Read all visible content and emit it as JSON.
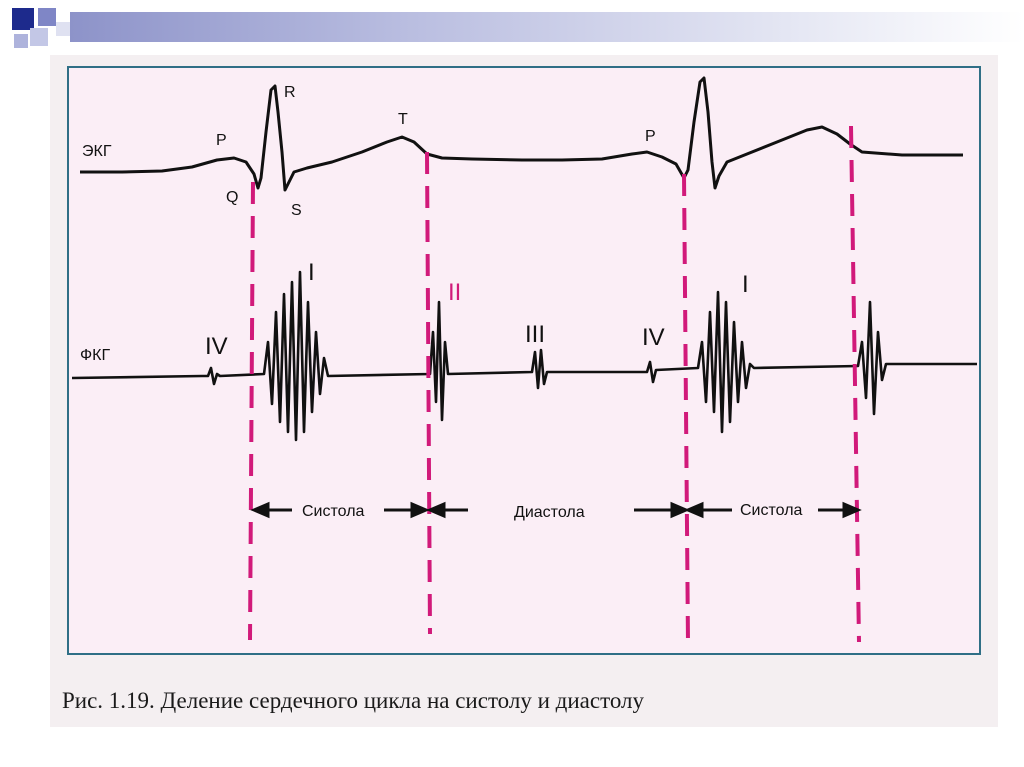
{
  "colors": {
    "accent_magenta": "#d11a7a",
    "trace": "#111111",
    "frame_border": "#2f6f86",
    "figure_bg": "#fbeef6",
    "deco_dark": "#1d2a8c",
    "deco_mid": "#7f86c6",
    "deco_light": "#c3c7e6"
  },
  "diagram": {
    "ecg_label": "ЭКГ",
    "pcg_label": "ФКГ",
    "ecg_waves": {
      "p1": "P",
      "q": "Q",
      "r": "R",
      "s": "S",
      "t": "T",
      "p2": "P"
    },
    "heart_sounds": {
      "iv_1": "IV",
      "i_1": "I",
      "ii": "II",
      "iii": "III",
      "iv_2": "IV",
      "i_2": "I"
    },
    "phases": {
      "systole_1": "Систола",
      "diastole": "Диастола",
      "systole_2": "Систола"
    }
  },
  "caption": "Рис. 1.19. Деление сердечного цикла на систолу и диастолу"
}
